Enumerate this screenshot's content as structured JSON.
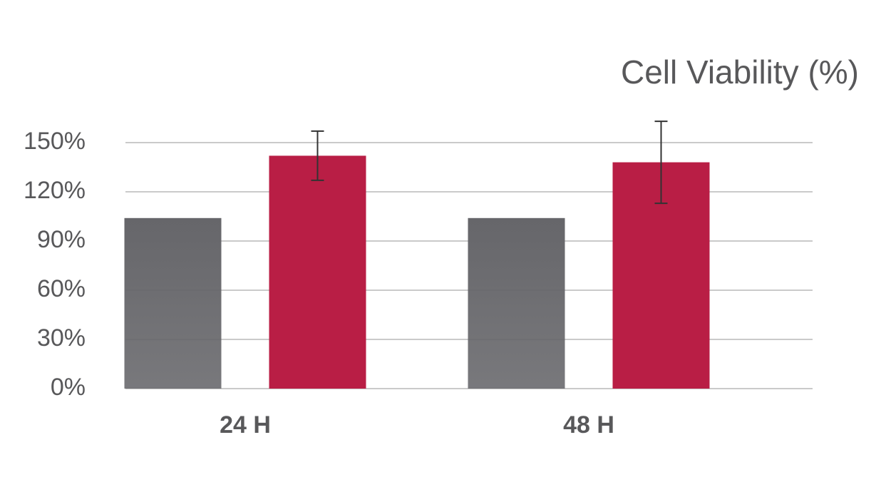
{
  "chart_data": {
    "type": "bar",
    "title": "Cell Viability (%)",
    "categories": [
      "24 H",
      "48 H"
    ],
    "series": [
      {
        "color": "#66666a",
        "values": [
          104,
          104
        ]
      },
      {
        "color": "#b91e45",
        "values": [
          142,
          138
        ],
        "errors": [
          15,
          25
        ]
      }
    ],
    "ylim": [
      0,
      150
    ],
    "yticks": [
      {
        "value": 0,
        "label": "0%"
      },
      {
        "value": 30,
        "label": "30%"
      },
      {
        "value": 60,
        "label": "60%"
      },
      {
        "value": 90,
        "label": "90%"
      },
      {
        "value": 120,
        "label": "120%"
      },
      {
        "value": 150,
        "label": "150%"
      }
    ],
    "grid": true
  }
}
